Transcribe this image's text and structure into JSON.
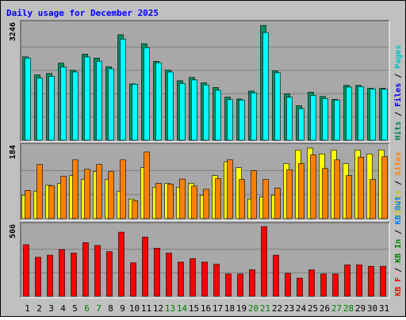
{
  "chart_data": {
    "title": "Daily usage for December 2025",
    "type": "bar",
    "days": [
      "1",
      "2",
      "3",
      "4",
      "5",
      "6",
      "7",
      "8",
      "9",
      "10",
      "11",
      "12",
      "13",
      "14",
      "15",
      "16",
      "17",
      "18",
      "19",
      "20",
      "21",
      "22",
      "23",
      "24",
      "25",
      "26",
      "27",
      "28",
      "29",
      "30",
      "31"
    ],
    "weekend_days": [
      "6",
      "7",
      "13",
      "14",
      "20",
      "21",
      "27",
      "28"
    ],
    "colors": {
      "title": "#0000ff",
      "plot_background": "#a8a8a8",
      "grid": "#7f7f7f",
      "hits": "#00c8c8",
      "files": "#00ffff",
      "pages": "#009060",
      "visits": "#ffff00",
      "sites": "#ff8000",
      "kbytes": "#ff0000",
      "weekday_label": "#000000",
      "weekend_label": "#008000",
      "kbin_label": "#008000",
      "kbout_label": "#0080ff"
    },
    "panels": [
      {
        "key": "hits_panel",
        "ymax": 3246,
        "ymax_label": "3246",
        "legend": [
          {
            "text": "Hits",
            "color": "#008060"
          },
          {
            "text": " / ",
            "color": "#000000"
          },
          {
            "text": "Files",
            "color": "#0000ff"
          },
          {
            "text": " / ",
            "color": "#000000"
          },
          {
            "text": "Pages",
            "color": "#00c0c0"
          }
        ],
        "series": [
          {
            "name": "Hits",
            "color": "#00c8c8",
            "values": [
              2324,
              1820,
              1860,
              2150,
              1950,
              2400,
              2290,
              2050,
              2940,
              1570,
              2690,
              2200,
              1950,
              1660,
              1750,
              1600,
              1470,
              1200,
              1150,
              1370,
              3200,
              1930,
              1290,
              960,
              1340,
              1220,
              1140,
              1530,
              1530,
              1450,
              1450
            ]
          },
          {
            "name": "Files",
            "color": "#00ffff",
            "values": [
              2290,
              1730,
              1780,
              2040,
              1900,
              2320,
              2200,
              1990,
              2820,
              1560,
              2580,
              2160,
              1900,
              1580,
              1680,
              1540,
              1390,
              1130,
              1120,
              1320,
              3000,
              1880,
              1200,
              880,
              1250,
              1160,
              1120,
              1480,
              1490,
              1430,
              1420
            ]
          },
          {
            "name": "Pages",
            "color": "#009060",
            "values": [
              2324,
              1820,
              1860,
              2150,
              1950,
              2400,
              2290,
              2050,
              2940,
              1570,
              2690,
              2200,
              1950,
              1660,
              1750,
              1600,
              1470,
              1200,
              1150,
              1370,
              3200,
              1930,
              1290,
              960,
              1340,
              1220,
              1140,
              1530,
              1530,
              1450,
              1450
            ]
          }
        ]
      },
      {
        "key": "visits_panel",
        "ymax": 184,
        "ymax_label": "184",
        "legend": [
          {
            "text": "Visits",
            "color": "#c8c800"
          },
          {
            "text": " / ",
            "color": "#000000"
          },
          {
            "text": "Sites",
            "color": "#ff8000"
          }
        ],
        "series": [
          {
            "name": "Visits",
            "color": "#ffff00",
            "values": [
              60,
              70,
              85,
              90,
              110,
              100,
              120,
              100,
              70,
              50,
              130,
              80,
              90,
              80,
              90,
              60,
              110,
              145,
              130,
              50,
              55,
              60,
              140,
              175,
              180,
              165,
              175,
              140,
              175,
              165,
              175
            ]
          },
          {
            "name": "Sites",
            "color": "#ff8000",
            "values": [
              72,
              138,
              84,
              108,
              150,
              126,
              138,
              120,
              150,
              46,
              170,
              90,
              88,
              101,
              83,
              75,
              102,
              150,
              100,
              122,
              100,
              78,
              125,
              141,
              163,
              128,
              150,
              110,
              157,
              100,
              158
            ]
          }
        ]
      },
      {
        "key": "kbytes_panel",
        "ymax": 506,
        "ymax_label": "506",
        "legend": [
          {
            "text": "KB F",
            "color": "#ff0000"
          },
          {
            "text": " / ",
            "color": "#000000"
          },
          {
            "text": "KB In",
            "color": "#008000"
          },
          {
            "text": " / ",
            "color": "#000000"
          },
          {
            "text": "KB Out",
            "color": "#0080ff"
          }
        ],
        "series": [
          {
            "name": "KB F",
            "color": "#ff0000",
            "values": [
              370,
              280,
              295,
              335,
              310,
              385,
              365,
              320,
              460,
              240,
              425,
              345,
              310,
              245,
              270,
              245,
              230,
              160,
              160,
              190,
              500,
              295,
              165,
              130,
              190,
              160,
              160,
              225,
              225,
              215,
              215
            ]
          }
        ]
      }
    ]
  }
}
